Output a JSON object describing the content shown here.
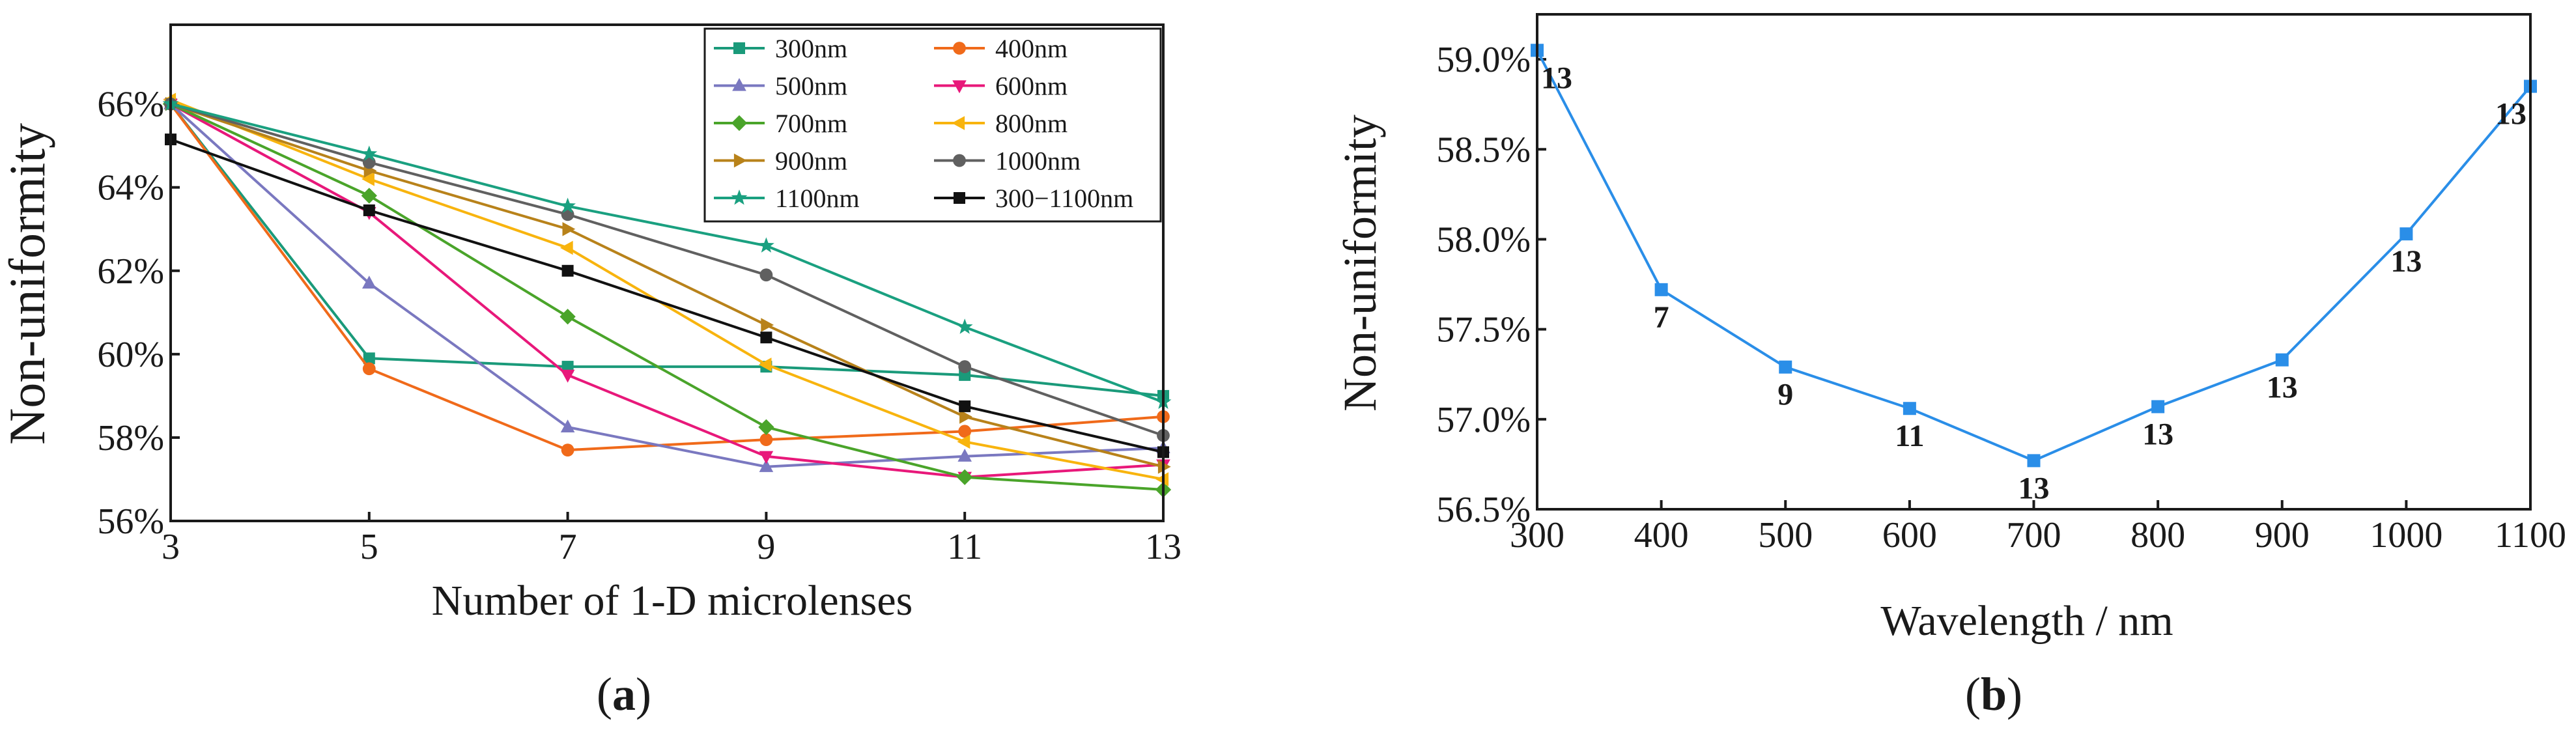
{
  "chart_data": [
    {
      "type": "line",
      "panel": "(a)",
      "caption_open": "(",
      "caption_letter": "a",
      "caption_close": ")",
      "xlabel": "Number of 1-D microlenses",
      "ylabel": "Non-uniformity",
      "x": [
        3,
        5,
        7,
        9,
        11,
        13
      ],
      "xticks": [
        "3",
        "5",
        "7",
        "9",
        "11",
        "13"
      ],
      "xlim": [
        3,
        13
      ],
      "yticks": [
        "56%",
        "58%",
        "60%",
        "62%",
        "64%",
        "66%"
      ],
      "ytick_values": [
        56,
        58,
        60,
        62,
        64,
        66
      ],
      "ylim": [
        56,
        67.9
      ],
      "legend_position": "top-right",
      "series": [
        {
          "name": "300nm",
          "color": "#1a9a7a",
          "marker": "square",
          "values": [
            66.0,
            59.9,
            59.7,
            59.7,
            59.5,
            59.0
          ]
        },
        {
          "name": "400nm",
          "color": "#f06a1a",
          "marker": "circle",
          "values": [
            66.0,
            59.65,
            57.7,
            57.95,
            58.15,
            58.5
          ]
        },
        {
          "name": "500nm",
          "color": "#7a78c0",
          "marker": "triangle-up",
          "values": [
            66.0,
            61.7,
            58.25,
            57.3,
            57.55,
            57.75
          ]
        },
        {
          "name": "600nm",
          "color": "#e8187a",
          "marker": "triangle-down",
          "values": [
            66.0,
            63.4,
            59.5,
            57.55,
            57.05,
            57.35
          ]
        },
        {
          "name": "700nm",
          "color": "#4aa42a",
          "marker": "diamond",
          "values": [
            66.0,
            63.8,
            60.9,
            58.25,
            57.05,
            56.75
          ]
        },
        {
          "name": "800nm",
          "color": "#f8b40e",
          "marker": "triangle-left",
          "values": [
            66.1,
            64.2,
            62.55,
            59.75,
            57.9,
            57.0
          ]
        },
        {
          "name": "900nm",
          "color": "#b8821a",
          "marker": "triangle-right",
          "values": [
            66.0,
            64.4,
            63.0,
            60.7,
            58.5,
            57.3
          ]
        },
        {
          "name": "1000nm",
          "color": "#606060",
          "marker": "circle",
          "values": [
            66.0,
            64.6,
            63.35,
            61.9,
            59.7,
            58.05
          ]
        },
        {
          "name": "1100nm",
          "color": "#1aa080",
          "marker": "star",
          "values": [
            66.0,
            64.8,
            63.55,
            62.6,
            60.65,
            58.85
          ]
        },
        {
          "name": "300−1100nm",
          "color": "#111111",
          "marker": "square",
          "values": [
            65.15,
            63.45,
            62.0,
            60.4,
            58.75,
            57.65
          ]
        }
      ]
    },
    {
      "type": "line",
      "panel": "(b)",
      "caption_open": "(",
      "caption_letter": "b",
      "caption_close": ")",
      "xlabel": "Wavelength / nm",
      "ylabel": "Non-uniformity",
      "x": [
        300,
        400,
        500,
        600,
        700,
        800,
        900,
        1000,
        1100
      ],
      "xticks": [
        "300",
        "400",
        "500",
        "600",
        "700",
        "800",
        "900",
        "1000",
        "1100"
      ],
      "xlim": [
        300,
        1100
      ],
      "yticks": [
        "56.5%",
        "57.0%",
        "57.5%",
        "58.0%",
        "58.5%",
        "59.0%"
      ],
      "ytick_values": [
        56.5,
        57.0,
        57.5,
        58.0,
        58.5,
        59.0
      ],
      "ylim": [
        56.5,
        59.25
      ],
      "series": [
        {
          "name": "Non-uniformity",
          "color": "#2a8ee8",
          "marker": "square",
          "values": [
            59.05,
            57.72,
            57.29,
            57.06,
            56.77,
            57.07,
            57.33,
            58.03,
            58.85
          ],
          "point_labels": [
            "13",
            "7",
            "9",
            "11",
            "13",
            "13",
            "13",
            "13",
            "13"
          ]
        }
      ]
    }
  ]
}
